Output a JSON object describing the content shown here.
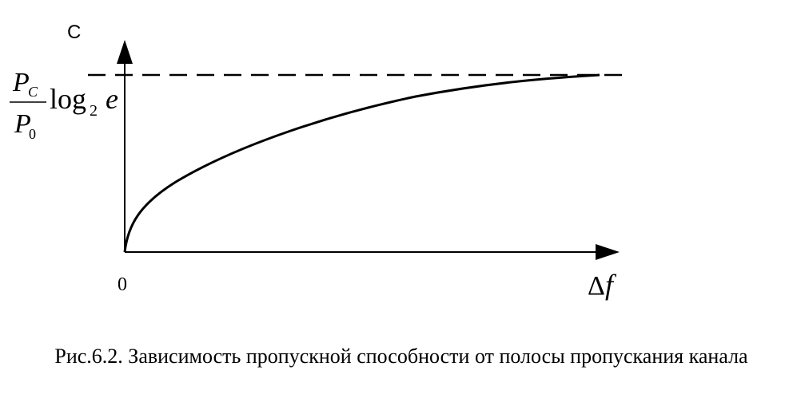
{
  "y_axis_label": "С",
  "asymptote_label": {
    "numerator": "P",
    "numerator_sub": "C",
    "denominator": "P",
    "denominator_sub": "0",
    "log": "log",
    "log_base": "2",
    "log_arg": "e"
  },
  "origin_label": "0",
  "x_axis_label": {
    "delta": "Δ",
    "symbol": "f"
  },
  "caption": "Рис.6.2. Зависимость пропускной способности от полосы пропускания канала"
}
